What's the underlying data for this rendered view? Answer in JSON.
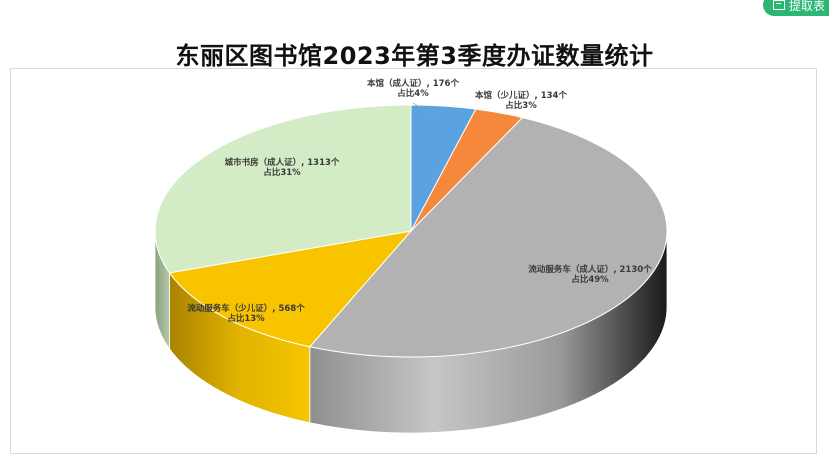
{
  "toolbar": {
    "extract_label": "提取表"
  },
  "chart_data": {
    "type": "pie",
    "title": "东丽区图书馆2023年第3季度办证数量统计",
    "slices": [
      {
        "name": "本馆（成人证）",
        "value": 176,
        "percent": "4%",
        "label_line1": "本馆（成人证）, 176个",
        "label_line2": "占比4%",
        "color": "#5ba3e0"
      },
      {
        "name": "本馆（少儿证）",
        "value": 134,
        "percent": "3%",
        "label_line1": "本馆（少儿证）, 134个",
        "label_line2": "占比3%",
        "color": "#f5883a"
      },
      {
        "name": "流动服务车（成人证）",
        "value": 2130,
        "percent": "49%",
        "label_line1": "流动服务车（成人证）, 2130个",
        "label_line2": "占比49%",
        "color": "#b2b2b2"
      },
      {
        "name": "流动服务车（少儿证）",
        "value": 568,
        "percent": "13%",
        "label_line1": "流动服务车（少儿证）, 568个",
        "label_line2": "占比13%",
        "color": "#f8c400"
      },
      {
        "name": "城市书房（成人证）",
        "value": 1313,
        "percent": "31%",
        "label_line1": "城市书房（成人证）, 1313个",
        "label_line2": "占比31%",
        "color": "#d3ecc5"
      }
    ]
  }
}
